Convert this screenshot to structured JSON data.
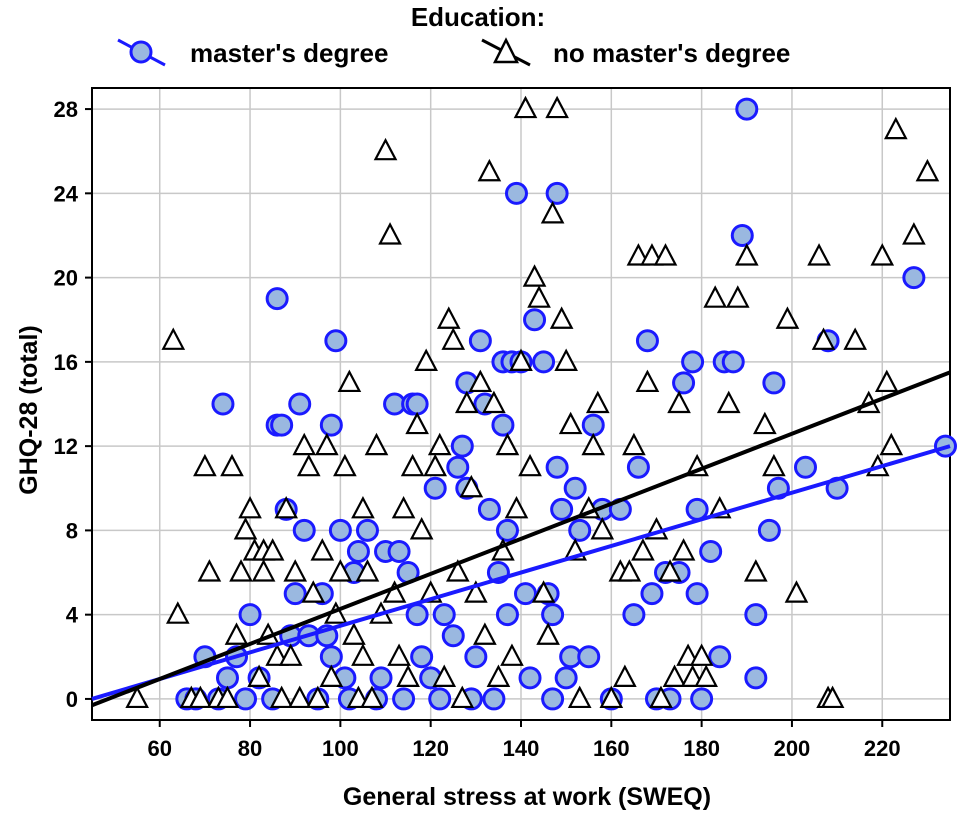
{
  "chart_data": {
    "type": "scatter",
    "xlabel": "General stress at work (SWEQ)",
    "ylabel": "GHQ-28 (total)",
    "xlim": [
      45,
      235
    ],
    "ylim": [
      -1,
      29
    ],
    "xticks": [
      60,
      80,
      100,
      120,
      140,
      160,
      180,
      200,
      220
    ],
    "yticks": [
      0,
      4,
      8,
      12,
      16,
      20,
      24,
      28
    ],
    "grid": true,
    "legend": {
      "title": "Education:",
      "placement": "top-center",
      "entries": [
        "master's degree",
        "no master's degree"
      ]
    },
    "series": [
      {
        "name": "master's degree",
        "marker": "circle",
        "color": "#1a1aff",
        "fill": "#9ab8e0",
        "trendline": [
          [
            45,
            0
          ],
          [
            235,
            12
          ]
        ],
        "points": [
          [
            66,
            0
          ],
          [
            68,
            0
          ],
          [
            70,
            2
          ],
          [
            73,
            0
          ],
          [
            75,
            1
          ],
          [
            77,
            2
          ],
          [
            74,
            14
          ],
          [
            79,
            0
          ],
          [
            80,
            4
          ],
          [
            82,
            1
          ],
          [
            85,
            0
          ],
          [
            86,
            19
          ],
          [
            86,
            13
          ],
          [
            87,
            13
          ],
          [
            88,
            9
          ],
          [
            89,
            3
          ],
          [
            90,
            5
          ],
          [
            91,
            14
          ],
          [
            92,
            8
          ],
          [
            93,
            3
          ],
          [
            95,
            0
          ],
          [
            96,
            5
          ],
          [
            97,
            3
          ],
          [
            98,
            2
          ],
          [
            98,
            13
          ],
          [
            99,
            17
          ],
          [
            100,
            8
          ],
          [
            101,
            1
          ],
          [
            102,
            0
          ],
          [
            103,
            6
          ],
          [
            104,
            7
          ],
          [
            106,
            8
          ],
          [
            108,
            0
          ],
          [
            109,
            1
          ],
          [
            110,
            7
          ],
          [
            112,
            14
          ],
          [
            113,
            7
          ],
          [
            114,
            0
          ],
          [
            115,
            6
          ],
          [
            116,
            14
          ],
          [
            117,
            14
          ],
          [
            117,
            4
          ],
          [
            118,
            2
          ],
          [
            120,
            1
          ],
          [
            121,
            10
          ],
          [
            122,
            0
          ],
          [
            123,
            4
          ],
          [
            125,
            3
          ],
          [
            126,
            11
          ],
          [
            127,
            12
          ],
          [
            128,
            10
          ],
          [
            128,
            15
          ],
          [
            129,
            0
          ],
          [
            130,
            2
          ],
          [
            131,
            17
          ],
          [
            132,
            14
          ],
          [
            133,
            9
          ],
          [
            134,
            0
          ],
          [
            135,
            6
          ],
          [
            136,
            16
          ],
          [
            136,
            13
          ],
          [
            137,
            8
          ],
          [
            137,
            4
          ],
          [
            138,
            16
          ],
          [
            139,
            24
          ],
          [
            140,
            16
          ],
          [
            141,
            5
          ],
          [
            142,
            1
          ],
          [
            143,
            18
          ],
          [
            145,
            16
          ],
          [
            146,
            5
          ],
          [
            147,
            0
          ],
          [
            147,
            4
          ],
          [
            148,
            24
          ],
          [
            148,
            11
          ],
          [
            149,
            9
          ],
          [
            150,
            1
          ],
          [
            151,
            2
          ],
          [
            152,
            10
          ],
          [
            153,
            8
          ],
          [
            155,
            2
          ],
          [
            156,
            13
          ],
          [
            158,
            9
          ],
          [
            160,
            0
          ],
          [
            162,
            9
          ],
          [
            165,
            4
          ],
          [
            166,
            11
          ],
          [
            168,
            17
          ],
          [
            169,
            5
          ],
          [
            170,
            0
          ],
          [
            172,
            6
          ],
          [
            173,
            0
          ],
          [
            175,
            6
          ],
          [
            176,
            15
          ],
          [
            178,
            16
          ],
          [
            179,
            9
          ],
          [
            179,
            5
          ],
          [
            180,
            0
          ],
          [
            182,
            7
          ],
          [
            184,
            2
          ],
          [
            185,
            16
          ],
          [
            187,
            16
          ],
          [
            189,
            22
          ],
          [
            190,
            28
          ],
          [
            192,
            4
          ],
          [
            192,
            1
          ],
          [
            195,
            8
          ],
          [
            196,
            15
          ],
          [
            197,
            10
          ],
          [
            203,
            11
          ],
          [
            208,
            17
          ],
          [
            210,
            10
          ],
          [
            227,
            20
          ],
          [
            234,
            12
          ]
        ]
      },
      {
        "name": "no master's degree",
        "marker": "triangle",
        "color": "#000000",
        "fill": "#ffffff",
        "trendline": [
          [
            45,
            -0.3
          ],
          [
            235,
            15.5
          ]
        ],
        "points": [
          [
            55,
            0
          ],
          [
            63,
            17
          ],
          [
            64,
            4
          ],
          [
            67,
            0
          ],
          [
            69,
            0
          ],
          [
            70,
            11
          ],
          [
            71,
            6
          ],
          [
            73,
            0
          ],
          [
            75,
            0
          ],
          [
            76,
            11
          ],
          [
            77,
            3
          ],
          [
            78,
            6
          ],
          [
            79,
            8
          ],
          [
            80,
            9
          ],
          [
            81,
            7
          ],
          [
            82,
            1
          ],
          [
            83,
            7
          ],
          [
            83,
            6
          ],
          [
            84,
            3
          ],
          [
            85,
            7
          ],
          [
            86,
            2
          ],
          [
            87,
            0
          ],
          [
            88,
            9
          ],
          [
            89,
            2
          ],
          [
            90,
            6
          ],
          [
            91,
            0
          ],
          [
            92,
            12
          ],
          [
            93,
            11
          ],
          [
            94,
            5
          ],
          [
            95,
            0
          ],
          [
            96,
            7
          ],
          [
            97,
            12
          ],
          [
            98,
            1
          ],
          [
            99,
            4
          ],
          [
            100,
            6
          ],
          [
            101,
            11
          ],
          [
            102,
            15
          ],
          [
            103,
            3
          ],
          [
            104,
            0
          ],
          [
            105,
            2
          ],
          [
            105,
            9
          ],
          [
            106,
            6
          ],
          [
            107,
            0
          ],
          [
            108,
            12
          ],
          [
            109,
            4
          ],
          [
            110,
            26
          ],
          [
            111,
            22
          ],
          [
            112,
            5
          ],
          [
            113,
            2
          ],
          [
            114,
            9
          ],
          [
            115,
            1
          ],
          [
            116,
            11
          ],
          [
            117,
            13
          ],
          [
            118,
            8
          ],
          [
            119,
            16
          ],
          [
            120,
            5
          ],
          [
            121,
            11
          ],
          [
            122,
            12
          ],
          [
            123,
            1
          ],
          [
            124,
            18
          ],
          [
            125,
            17
          ],
          [
            126,
            6
          ],
          [
            127,
            0
          ],
          [
            128,
            14
          ],
          [
            129,
            10
          ],
          [
            130,
            5
          ],
          [
            131,
            15
          ],
          [
            132,
            3
          ],
          [
            133,
            25
          ],
          [
            134,
            14
          ],
          [
            135,
            1
          ],
          [
            136,
            7
          ],
          [
            137,
            12
          ],
          [
            138,
            2
          ],
          [
            139,
            9
          ],
          [
            140,
            16
          ],
          [
            141,
            28
          ],
          [
            142,
            11
          ],
          [
            143,
            20
          ],
          [
            144,
            19
          ],
          [
            145,
            5
          ],
          [
            146,
            3
          ],
          [
            147,
            23
          ],
          [
            148,
            28
          ],
          [
            149,
            18
          ],
          [
            150,
            16
          ],
          [
            151,
            13
          ],
          [
            152,
            7
          ],
          [
            153,
            0
          ],
          [
            155,
            9
          ],
          [
            156,
            12
          ],
          [
            157,
            14
          ],
          [
            158,
            8
          ],
          [
            160,
            0
          ],
          [
            162,
            6
          ],
          [
            163,
            1
          ],
          [
            164,
            6
          ],
          [
            165,
            12
          ],
          [
            166,
            21
          ],
          [
            167,
            7
          ],
          [
            168,
            15
          ],
          [
            169,
            21
          ],
          [
            170,
            8
          ],
          [
            171,
            0
          ],
          [
            172,
            21
          ],
          [
            173,
            6
          ],
          [
            174,
            1
          ],
          [
            175,
            14
          ],
          [
            176,
            7
          ],
          [
            177,
            2
          ],
          [
            178,
            1
          ],
          [
            179,
            11
          ],
          [
            180,
            2
          ],
          [
            181,
            1
          ],
          [
            183,
            19
          ],
          [
            184,
            9
          ],
          [
            186,
            14
          ],
          [
            188,
            19
          ],
          [
            190,
            21
          ],
          [
            192,
            6
          ],
          [
            194,
            13
          ],
          [
            196,
            11
          ],
          [
            199,
            18
          ],
          [
            201,
            5
          ],
          [
            206,
            21
          ],
          [
            207,
            17
          ],
          [
            208,
            0
          ],
          [
            209,
            0
          ],
          [
            214,
            17
          ],
          [
            217,
            14
          ],
          [
            219,
            11
          ],
          [
            220,
            21
          ],
          [
            221,
            15
          ],
          [
            222,
            12
          ],
          [
            223,
            27
          ],
          [
            227,
            22
          ],
          [
            230,
            25
          ]
        ]
      }
    ]
  }
}
